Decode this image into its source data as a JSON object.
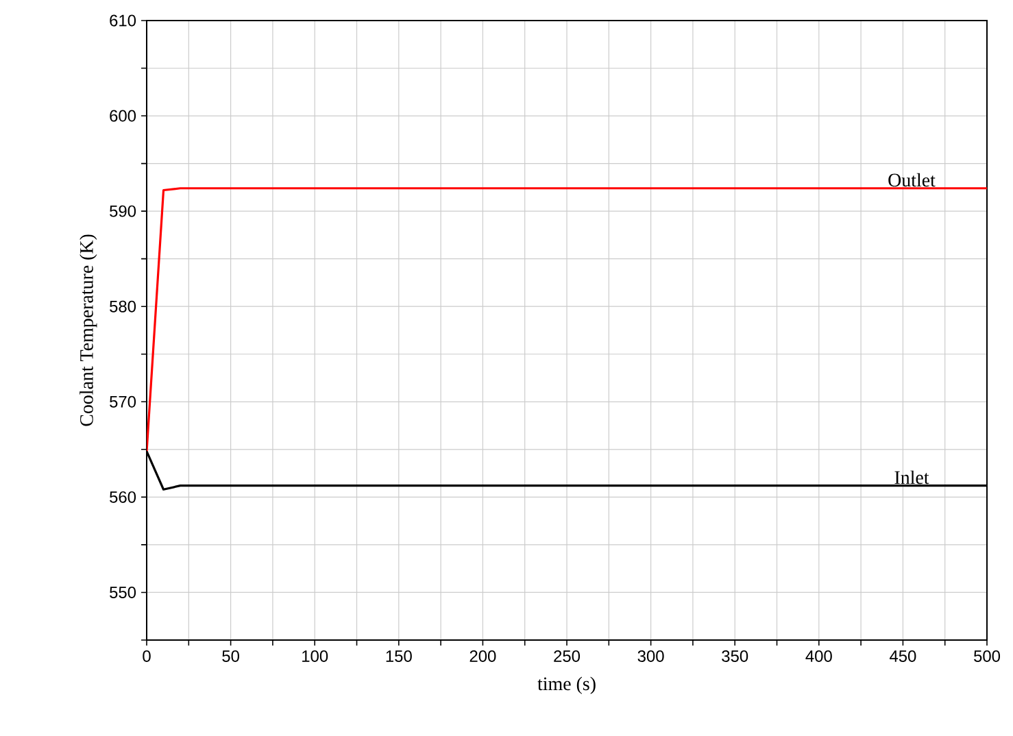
{
  "chart_data": {
    "type": "line",
    "xlabel": "time (s)",
    "ylabel": "Coolant Temperature (K)",
    "x": [
      0,
      10,
      20,
      100,
      200,
      300,
      400,
      500
    ],
    "series": [
      {
        "name": "Outlet",
        "color": "#ff0000",
        "values": [
          564.8,
          592.2,
          592.4,
          592.4,
          592.4,
          592.4,
          592.4,
          592.4
        ]
      },
      {
        "name": "Inlet",
        "color": "#000000",
        "values": [
          564.8,
          560.8,
          561.2,
          561.2,
          561.2,
          561.2,
          561.2,
          561.2
        ]
      }
    ],
    "xlim": [
      0,
      500
    ],
    "ylim": [
      545,
      610
    ],
    "xticks": [
      0,
      {
        "value": 25,
        "label": null
      },
      50,
      {
        "value": 75,
        "label": null
      },
      100,
      {
        "value": 125,
        "label": null
      },
      150,
      {
        "value": 175,
        "label": null
      },
      200,
      {
        "value": 225,
        "label": null
      },
      250,
      {
        "value": 275,
        "label": null
      },
      300,
      {
        "value": 325,
        "label": null
      },
      350,
      {
        "value": 375,
        "label": null
      },
      400,
      {
        "value": 425,
        "label": null
      },
      450,
      {
        "value": 475,
        "label": null
      },
      500
    ],
    "yticks": [
      {
        "value": 545,
        "label": null
      },
      550,
      {
        "value": 555,
        "label": null
      },
      560,
      {
        "value": 565,
        "label": null
      },
      570,
      {
        "value": 575,
        "label": null
      },
      580,
      {
        "value": 585,
        "label": null
      },
      590,
      {
        "value": 595,
        "label": null
      },
      600,
      {
        "value": 605,
        "label": null
      },
      610
    ],
    "grid": true,
    "legend": false,
    "marker": "none",
    "line_style": "solid"
  }
}
